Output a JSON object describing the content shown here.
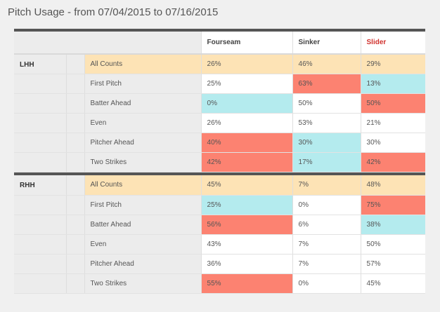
{
  "title": "Pitch Usage - from 07/04/2015 to 07/16/2015",
  "columns": [
    {
      "label": "Fourseam",
      "color": "#444444"
    },
    {
      "label": "Sinker",
      "color": "#444444"
    },
    {
      "label": "Slider",
      "color": "#d0312d"
    }
  ],
  "colors": {
    "peach": "#fde3b5",
    "red": "#fc8271",
    "cyan": "#b4ebee",
    "white": "#ffffff"
  },
  "groups": [
    {
      "name": "LHH",
      "rows": [
        {
          "label": "All Counts",
          "values": [
            "26%",
            "46%",
            "29%"
          ],
          "colors": [
            "peach",
            "peach",
            "peach"
          ],
          "highlight": true
        },
        {
          "label": "First Pitch",
          "values": [
            "25%",
            "63%",
            "13%"
          ],
          "colors": [
            "white",
            "red",
            "cyan"
          ]
        },
        {
          "label": "Batter Ahead",
          "values": [
            "0%",
            "50%",
            "50%"
          ],
          "colors": [
            "cyan",
            "white",
            "red"
          ]
        },
        {
          "label": "Even",
          "values": [
            "26%",
            "53%",
            "21%"
          ],
          "colors": [
            "white",
            "white",
            "white"
          ]
        },
        {
          "label": "Pitcher Ahead",
          "values": [
            "40%",
            "30%",
            "30%"
          ],
          "colors": [
            "red",
            "cyan",
            "white"
          ]
        },
        {
          "label": "Two Strikes",
          "values": [
            "42%",
            "17%",
            "42%"
          ],
          "colors": [
            "red",
            "cyan",
            "red"
          ]
        }
      ]
    },
    {
      "name": "RHH",
      "rows": [
        {
          "label": "All Counts",
          "values": [
            "45%",
            "7%",
            "48%"
          ],
          "colors": [
            "peach",
            "peach",
            "peach"
          ],
          "highlight": true
        },
        {
          "label": "First Pitch",
          "values": [
            "25%",
            "0%",
            "75%"
          ],
          "colors": [
            "cyan",
            "white",
            "red"
          ]
        },
        {
          "label": "Batter Ahead",
          "values": [
            "56%",
            "6%",
            "38%"
          ],
          "colors": [
            "red",
            "white",
            "cyan"
          ]
        },
        {
          "label": "Even",
          "values": [
            "43%",
            "7%",
            "50%"
          ],
          "colors": [
            "white",
            "white",
            "white"
          ]
        },
        {
          "label": "Pitcher Ahead",
          "values": [
            "36%",
            "7%",
            "57%"
          ],
          "colors": [
            "white",
            "white",
            "white"
          ]
        },
        {
          "label": "Two Strikes",
          "values": [
            "55%",
            "0%",
            "45%"
          ],
          "colors": [
            "red",
            "white",
            "white"
          ]
        }
      ]
    }
  ]
}
